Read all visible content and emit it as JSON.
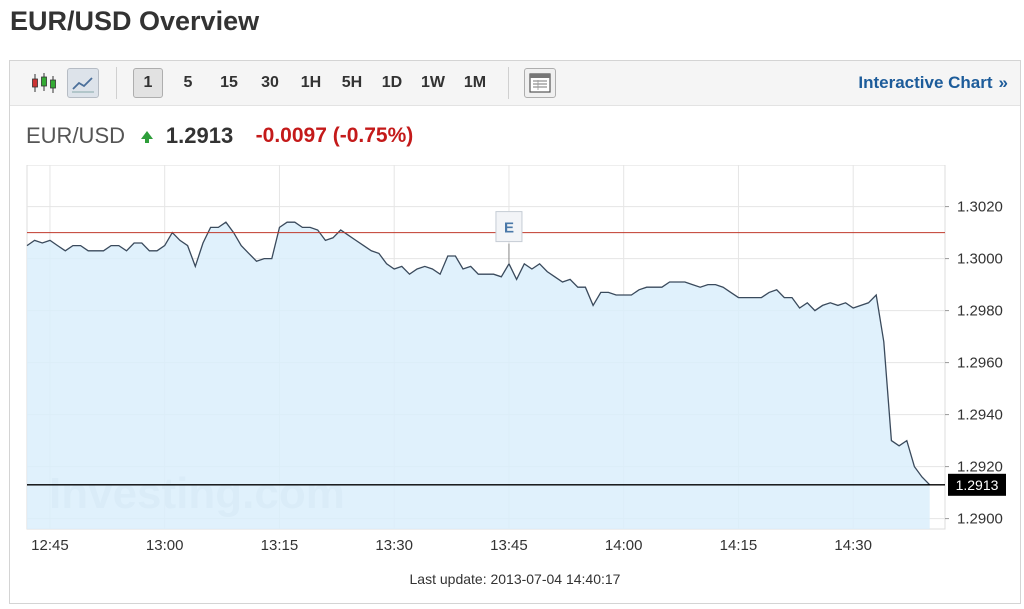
{
  "page": {
    "title": "EUR/USD Overview"
  },
  "toolbar": {
    "chart_type_buttons": [
      {
        "name": "candlestick-icon",
        "active": false
      },
      {
        "name": "line-chart-icon",
        "active": true
      }
    ],
    "timeframes": [
      {
        "label": "1",
        "active": true
      },
      {
        "label": "5",
        "active": false
      },
      {
        "label": "15",
        "active": false
      },
      {
        "label": "30",
        "active": false
      },
      {
        "label": "1H",
        "active": false
      },
      {
        "label": "5H",
        "active": false
      },
      {
        "label": "1D",
        "active": false
      },
      {
        "label": "1W",
        "active": false
      },
      {
        "label": "1M",
        "active": false
      }
    ],
    "table_icon": "table-view-icon",
    "interactive_link": "Interactive Chart",
    "interactive_arrow": "»"
  },
  "quote": {
    "symbol": "EUR/USD",
    "direction": "up",
    "price": "1.2913",
    "change": "-0.0097 (-0.75%)"
  },
  "colors": {
    "line": "#3a4a5c",
    "area_fill": "#dbeefb",
    "reference_line": "#c0392b",
    "last_price_line": "#000000",
    "change_negative": "#c41a1a",
    "arrow_up": "#2e9e3a",
    "link": "#1d5c9a",
    "grid": "#e5e5e5"
  },
  "chart_data": {
    "type": "area",
    "title": "",
    "xlabel": "",
    "ylabel": "",
    "x_ticks": [
      "12:45",
      "13:00",
      "13:15",
      "13:30",
      "13:45",
      "14:00",
      "14:15",
      "14:30"
    ],
    "y_ticks": [
      "1.3020",
      "1.3000",
      "1.2980",
      "1.2960",
      "1.2940",
      "1.2920",
      "1.2900"
    ],
    "ylim": [
      1.2896,
      1.3036
    ],
    "xlim": [
      "12:42",
      "14:42"
    ],
    "grid": true,
    "y_axis_position": "right",
    "reference_line": {
      "y": 1.301
    },
    "event_marker": {
      "time": "13:45",
      "label": "E"
    },
    "last_value": {
      "y": 1.2913,
      "label": "1.2913"
    },
    "watermark": "Investing.com",
    "series": [
      {
        "times": [
          "12:42",
          "12:43",
          "12:44",
          "12:45",
          "12:46",
          "12:47",
          "12:48",
          "12:49",
          "12:50",
          "12:51",
          "12:52",
          "12:53",
          "12:54",
          "12:55",
          "12:56",
          "12:57",
          "12:58",
          "12:59",
          "13:00",
          "13:01",
          "13:02",
          "13:03",
          "13:04",
          "13:05",
          "13:06",
          "13:07",
          "13:08",
          "13:09",
          "13:10",
          "13:11",
          "13:12",
          "13:13",
          "13:14",
          "13:15",
          "13:16",
          "13:17",
          "13:18",
          "13:19",
          "13:20",
          "13:21",
          "13:22",
          "13:23",
          "13:24",
          "13:25",
          "13:26",
          "13:27",
          "13:28",
          "13:29",
          "13:30",
          "13:31",
          "13:32",
          "13:33",
          "13:34",
          "13:35",
          "13:36",
          "13:37",
          "13:38",
          "13:39",
          "13:40",
          "13:41",
          "13:42",
          "13:43",
          "13:44",
          "13:45",
          "13:46",
          "13:47",
          "13:48",
          "13:49",
          "13:50",
          "13:51",
          "13:52",
          "13:53",
          "13:54",
          "13:55",
          "13:56",
          "13:57",
          "13:58",
          "13:59",
          "14:00",
          "14:01",
          "14:02",
          "14:03",
          "14:04",
          "14:05",
          "14:06",
          "14:07",
          "14:08",
          "14:09",
          "14:10",
          "14:11",
          "14:12",
          "14:13",
          "14:14",
          "14:15",
          "14:16",
          "14:17",
          "14:18",
          "14:19",
          "14:20",
          "14:21",
          "14:22",
          "14:23",
          "14:24",
          "14:25",
          "14:26",
          "14:27",
          "14:28",
          "14:29",
          "14:30",
          "14:31",
          "14:32",
          "14:33",
          "14:34",
          "14:35",
          "14:36",
          "14:37",
          "14:38",
          "14:39",
          "14:40"
        ],
        "values": [
          1.3005,
          1.3007,
          1.3006,
          1.3007,
          1.3005,
          1.3003,
          1.3005,
          1.3005,
          1.3003,
          1.3003,
          1.3003,
          1.3005,
          1.3005,
          1.3003,
          1.3006,
          1.3006,
          1.3003,
          1.3003,
          1.3005,
          1.301,
          1.3007,
          1.3005,
          1.2997,
          1.3006,
          1.3012,
          1.3012,
          1.3014,
          1.301,
          1.3005,
          1.3002,
          1.2999,
          1.3,
          1.3,
          1.3012,
          1.3014,
          1.3014,
          1.3012,
          1.3012,
          1.3011,
          1.3007,
          1.3008,
          1.3011,
          1.3009,
          1.3007,
          1.3005,
          1.3003,
          1.3002,
          1.2998,
          1.2996,
          1.2997,
          1.2994,
          1.2996,
          1.2997,
          1.2996,
          1.2994,
          1.3001,
          1.3001,
          1.2996,
          1.2997,
          1.2994,
          1.2994,
          1.2994,
          1.2993,
          1.2998,
          1.2992,
          1.2998,
          1.2996,
          1.2998,
          1.2995,
          1.2993,
          1.2991,
          1.2992,
          1.2989,
          1.2989,
          1.2982,
          1.2987,
          1.2987,
          1.2986,
          1.2986,
          1.2986,
          1.2988,
          1.2989,
          1.2989,
          1.2989,
          1.2991,
          1.2991,
          1.2991,
          1.299,
          1.2989,
          1.299,
          1.299,
          1.2989,
          1.2987,
          1.2985,
          1.2985,
          1.2985,
          1.2985,
          1.2987,
          1.2988,
          1.2985,
          1.2985,
          1.2981,
          1.2983,
          1.298,
          1.2982,
          1.2983,
          1.2982,
          1.2983,
          1.2981,
          1.2982,
          1.2983,
          1.2986,
          1.2968,
          1.293,
          1.2928,
          1.293,
          1.292,
          1.2916,
          1.2913
        ]
      }
    ]
  },
  "footer": {
    "last_update": "Last update: 2013-07-04 14:40:17"
  }
}
